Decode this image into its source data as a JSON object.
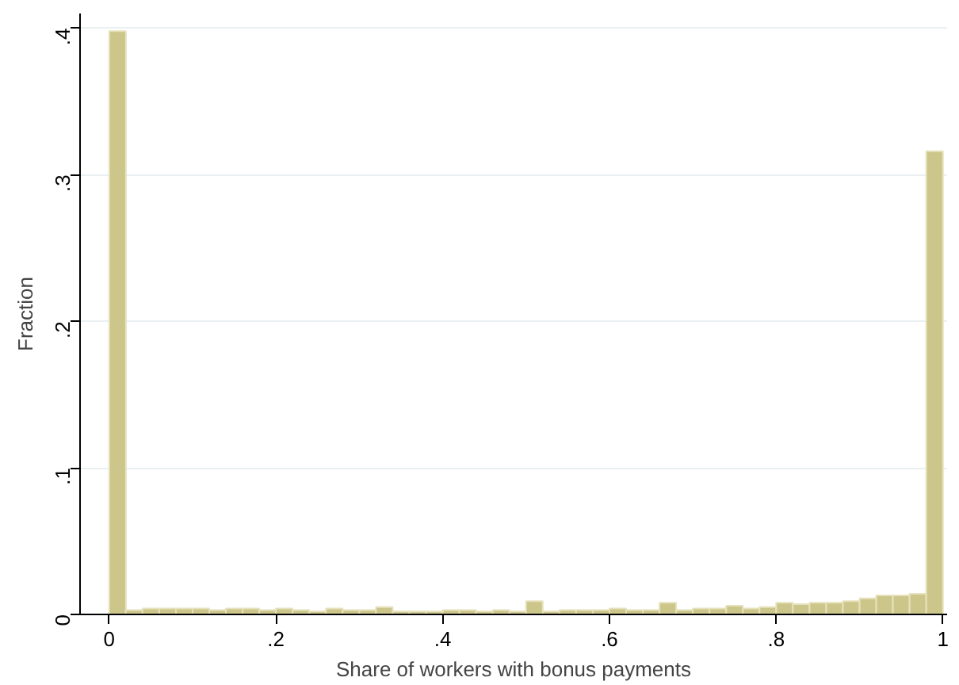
{
  "chart_data": {
    "type": "histogram",
    "xlabel": "Share of workers with bonus payments",
    "ylabel": "Fraction",
    "bins": [
      0,
      0.02,
      0.04,
      0.06,
      0.08,
      0.1,
      0.12,
      0.14,
      0.16,
      0.18,
      0.2,
      0.22,
      0.24,
      0.26,
      0.28,
      0.3,
      0.32,
      0.34,
      0.36,
      0.38,
      0.4,
      0.42,
      0.44,
      0.46,
      0.48,
      0.5,
      0.52,
      0.54,
      0.56,
      0.58,
      0.6,
      0.62,
      0.64,
      0.66,
      0.68,
      0.7,
      0.72,
      0.74,
      0.76,
      0.78,
      0.8,
      0.82,
      0.84,
      0.86,
      0.88,
      0.9,
      0.92,
      0.94,
      0.96,
      0.98,
      1
    ],
    "values": [
      0.398,
      0.003,
      0.004,
      0.004,
      0.004,
      0.004,
      0.003,
      0.004,
      0.004,
      0.003,
      0.004,
      0.003,
      0.002,
      0.004,
      0.003,
      0.003,
      0.005,
      0.002,
      0.002,
      0.002,
      0.003,
      0.003,
      0.002,
      0.003,
      0.002,
      0.009,
      0.002,
      0.003,
      0.003,
      0.003,
      0.004,
      0.003,
      0.003,
      0.008,
      0.003,
      0.004,
      0.004,
      0.006,
      0.004,
      0.005,
      0.008,
      0.007,
      0.008,
      0.008,
      0.009,
      0.011,
      0.013,
      0.013,
      0.014,
      0.316
    ],
    "color": "#cdc68a",
    "xlim": [
      -0.035,
      1.005
    ],
    "ylim": [
      0,
      0.41
    ],
    "xticks": [
      {
        "value": 0,
        "label": "0"
      },
      {
        "value": 0.2,
        "label": ".2"
      },
      {
        "value": 0.4,
        "label": ".4"
      },
      {
        "value": 0.6,
        "label": ".6"
      },
      {
        "value": 0.8,
        "label": ".8"
      },
      {
        "value": 1,
        "label": "1"
      }
    ],
    "yticks": [
      {
        "value": 0,
        "label": "0"
      },
      {
        "value": 0.1,
        "label": ".1"
      },
      {
        "value": 0.2,
        "label": ".2"
      },
      {
        "value": 0.3,
        "label": ".3"
      },
      {
        "value": 0.4,
        "label": ".4"
      }
    ],
    "grid": "y"
  }
}
